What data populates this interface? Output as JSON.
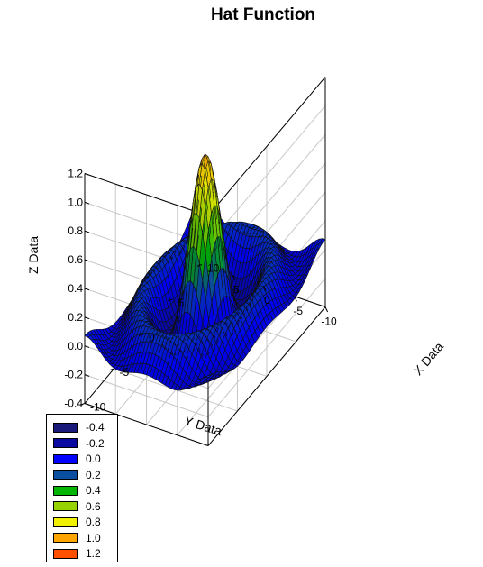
{
  "chart_data": {
    "type": "surface3d",
    "title": "Hat Function",
    "xlabel": "X Data",
    "ylabel": "Y Data",
    "zlabel": "Z Data",
    "function": "z = sin(r)/r, r = sqrt(x^2 + y^2)",
    "xlim": [
      -10,
      10
    ],
    "ylim": [
      -10,
      10
    ],
    "zlim": [
      -0.4,
      1.2
    ],
    "x_ticks": [
      {
        "v": -10,
        "label": "-10"
      },
      {
        "v": -5,
        "label": "-5"
      },
      {
        "v": 0,
        "label": "0"
      },
      {
        "v": 5,
        "label": "5"
      },
      {
        "v": 10,
        "label": "10"
      }
    ],
    "y_ticks": [
      {
        "v": -10,
        "label": "-10"
      },
      {
        "v": -5,
        "label": "-5"
      },
      {
        "v": 0,
        "label": "0"
      },
      {
        "v": 5,
        "label": "5"
      }
    ],
    "z_ticks": [
      {
        "v": -0.4,
        "label": "-0.4"
      },
      {
        "v": -0.2,
        "label": "-0.2"
      },
      {
        "v": 0.0,
        "label": "0.0"
      },
      {
        "v": 0.2,
        "label": "0.2"
      },
      {
        "v": 0.4,
        "label": "0.4"
      },
      {
        "v": 0.6,
        "label": "0.6"
      },
      {
        "v": 0.8,
        "label": "0.8"
      },
      {
        "v": 1.0,
        "label": "1.0"
      },
      {
        "v": 1.2,
        "label": "1.2"
      }
    ],
    "grid": true,
    "legend_position": "bottom-left",
    "legend": [
      {
        "label": "-0.4",
        "value": -0.4,
        "color": "#1a1a7a"
      },
      {
        "label": "-0.2",
        "value": -0.2,
        "color": "#0a0aa0"
      },
      {
        "label": "0.0",
        "value": 0.0,
        "color": "#0000ff"
      },
      {
        "label": "0.2",
        "value": 0.2,
        "color": "#0a4ea0"
      },
      {
        "label": "0.4",
        "value": 0.4,
        "color": "#00b400"
      },
      {
        "label": "0.6",
        "value": 0.6,
        "color": "#96d200"
      },
      {
        "label": "0.8",
        "value": 0.8,
        "color": "#f0f000"
      },
      {
        "label": "1.0",
        "value": 1.0,
        "color": "#ffa500"
      },
      {
        "label": "1.2",
        "value": 1.2,
        "color": "#ff5000"
      }
    ]
  }
}
